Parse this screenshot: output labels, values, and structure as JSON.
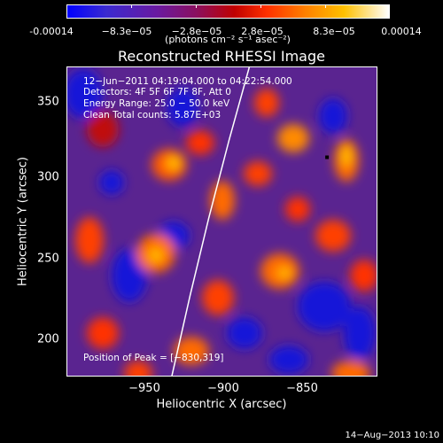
{
  "colorbar": {
    "tick_labels": [
      "-0.00014",
      "−8.3e−05",
      "−2.8e−05",
      "2.8e−05",
      "8.3e−05",
      "0.00014"
    ],
    "unit_label": "(photons cm⁻² s⁻¹ asec⁻²)",
    "range": [
      -0.00014,
      0.00014
    ]
  },
  "chart_data": {
    "type": "heatmap",
    "title": "Reconstructed RHESSI Image",
    "xlabel": "Heliocentric X (arcsec)",
    "ylabel": "Heliocentric Y (arcsec)",
    "xlim": [
      -997,
      -797
    ],
    "ylim": [
      177,
      377
    ],
    "x_ticks": [
      -950,
      -900,
      -850
    ],
    "x_tick_labels": [
      "−950",
      "−900",
      "−850"
    ],
    "y_ticks": [
      200,
      250,
      300,
      350
    ],
    "y_tick_labels": [
      "200",
      "250",
      "300",
      "350"
    ],
    "peak": {
      "x": -830,
      "y": 319
    },
    "limb_curve": [
      [
        -930,
        177
      ],
      [
        -918,
        230
      ],
      [
        -906,
        280
      ],
      [
        -893,
        330
      ],
      [
        -880,
        377
      ]
    ]
  },
  "info": {
    "line1": "12−Jun−2011 04:19:04.000 to 04:22:54.000",
    "line2": "Detectors: 4F 5F 6F 7F 8F, Att 0",
    "line3": "Energy Range: 25.0 − 50.0 keV",
    "line4": "Clean     Total counts: 5.87E+03",
    "peak_text": "Position of Peak = [−830,319]"
  },
  "footer": {
    "date": "14−Aug−2013 10:10"
  },
  "colors": {
    "low": "#1414d8",
    "mid": "#5a2490",
    "high": "#ff6a00",
    "peak": "#ffffff"
  }
}
